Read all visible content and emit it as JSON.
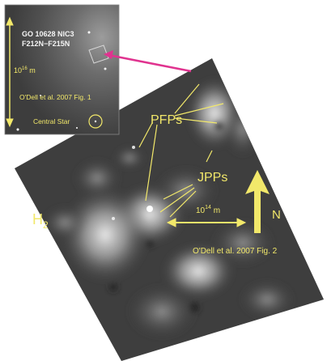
{
  "inset": {
    "header_line1": "GO 10628 NIC3",
    "header_line2": "F212N−F215N",
    "scale_base": "10",
    "scale_exp": "16",
    "scale_unit": " m",
    "credit": "O'Dell et al. 2007 Fig. 1",
    "central_star": "Central Star"
  },
  "main": {
    "pfps": "PFPs",
    "jpps": "JPPs",
    "h2_base": "H",
    "h2_sub": "2",
    "scale_base": "10",
    "scale_exp": "14",
    "scale_unit": " m",
    "north": "N",
    "credit": "O'Dell et al. 2007 Fig. 2"
  },
  "colors": {
    "annotation": "#f2e86a",
    "connector": "#e0338f",
    "inset_text": "#f4f4f4"
  },
  "icons": {
    "north_arrow": "arrow-up-icon",
    "scale_bar": "double-arrow-icon",
    "central_star": "circle-marker-icon"
  }
}
